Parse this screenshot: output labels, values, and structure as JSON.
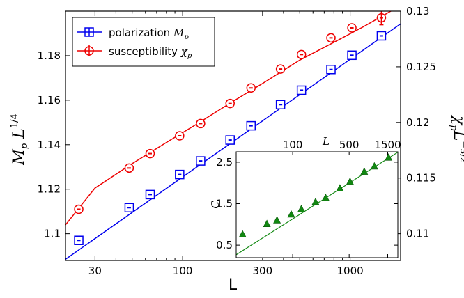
{
  "chart_data": [
    {
      "type": "scatter",
      "title": "",
      "xlabel": "L",
      "ylabel_left": "M_p L^{1/4}",
      "ylabel_right": "χ_p L^{−3/2}",
      "x_scale": "log",
      "xlim": [
        20,
        2000
      ],
      "ylim_left": [
        1.088,
        1.2
      ],
      "ylim_right": [
        0.1076,
        0.13
      ],
      "x_ticks": [
        30,
        100,
        300,
        1000
      ],
      "x_tick_labels": [
        "30",
        "100",
        "300",
        "1000"
      ],
      "y_ticks_left": [
        1.1,
        1.12,
        1.14,
        1.16,
        1.18
      ],
      "y_tick_labels_left": [
        "1.1",
        "1.12",
        "1.14",
        "1.16",
        "1.18"
      ],
      "y_ticks_right": [
        0.11,
        0.115,
        0.12,
        0.125,
        0.13
      ],
      "y_tick_labels_right": [
        "0.11",
        "0.115",
        "0.12",
        "0.125",
        "0.13"
      ],
      "legend_position": "top-left",
      "series": [
        {
          "name": "polarization M_p",
          "legend_label": "polarization",
          "legend_math": "M",
          "legend_sub": "p",
          "axis": "left",
          "marker": "square",
          "color": "#0000ee",
          "x": [
            24,
            48,
            64,
            96,
            128,
            192,
            256,
            384,
            512,
            768,
            1024,
            1536
          ],
          "y": [
            1.097,
            1.1117,
            1.1176,
            1.1266,
            1.1327,
            1.1421,
            1.1485,
            1.158,
            1.1645,
            1.1738,
            1.1802,
            1.1889
          ],
          "fit_x": [
            20,
            2000
          ],
          "fit_y": [
            1.0885,
            1.1943
          ]
        },
        {
          "name": "susceptibility χ_p",
          "legend_label": "susceptibility",
          "legend_math": "χ",
          "legend_sub": "p",
          "axis": "right",
          "marker": "circle",
          "color": "#ee0000",
          "x": [
            24,
            48,
            64,
            96,
            128,
            192,
            256,
            384,
            512,
            768,
            1024,
            1536
          ],
          "y": [
            0.1122,
            0.1159,
            0.1172,
            0.1188,
            0.1199,
            0.1217,
            0.1231,
            0.1248,
            0.1261,
            0.1276,
            0.1285,
            0.1294
          ],
          "fit_x": [
            20,
            30,
            50,
            80,
            120,
            200,
            300,
            500,
            800,
            1200,
            2000
          ],
          "fit_y": [
            0.1108,
            0.1141,
            0.1163,
            0.1182,
            0.1198,
            0.1219,
            0.1235,
            0.1256,
            0.1272,
            0.1286,
            0.1305
          ]
        }
      ]
    },
    {
      "type": "scatter",
      "title": "",
      "xlabel": "L",
      "ylabel": "C",
      "x_scale": "log",
      "xlim": [
        20,
        2000
      ],
      "ylim": [
        0.2,
        2.75
      ],
      "x_ticks": [
        100,
        500,
        1500
      ],
      "x_tick_labels": [
        "100",
        "500",
        "1500"
      ],
      "y_ticks": [
        0.5,
        1.5,
        2.5
      ],
      "y_tick_labels": [
        "0.5",
        "1.5",
        "2.5"
      ],
      "series": [
        {
          "marker": "triangle",
          "color": "#118811",
          "x": [
            24,
            48,
            64,
            96,
            128,
            192,
            256,
            384,
            512,
            768,
            1024,
            1536
          ],
          "y": [
            0.76,
            1.01,
            1.1,
            1.24,
            1.37,
            1.54,
            1.64,
            1.87,
            2.03,
            2.27,
            2.4,
            2.61
          ],
          "fit_x": [
            20,
            2000
          ],
          "fit_y": [
            0.27,
            2.74
          ]
        }
      ]
    }
  ]
}
